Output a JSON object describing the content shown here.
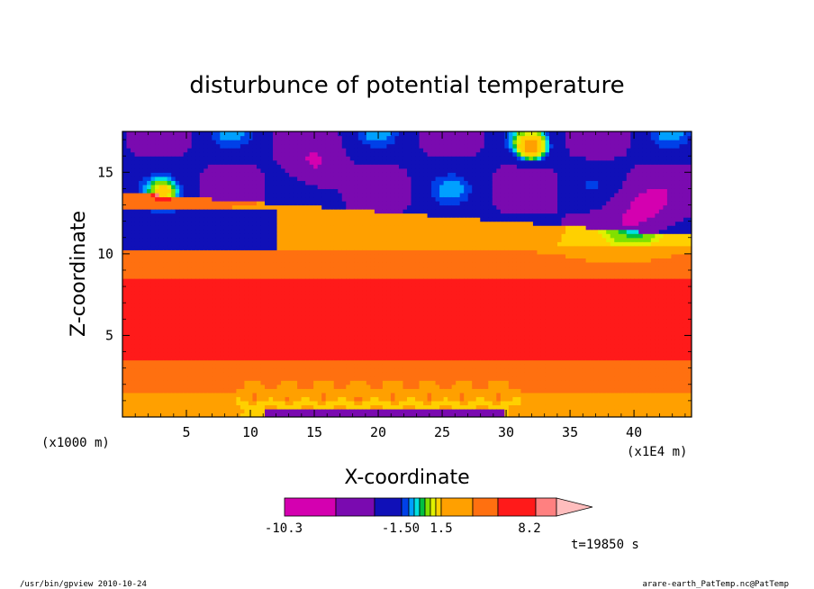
{
  "chart_data": {
    "type": "heatmap",
    "title": "disturbunce of potential temperature",
    "xlabel": "X-coordinate",
    "ylabel": "Z-coordinate",
    "x_unit_left": "(x1000 m)",
    "x_unit_right": "(x1E4 m)",
    "xlim": [
      0,
      44.5
    ],
    "ylim": [
      0,
      17.5
    ],
    "xticks": [
      5,
      10,
      15,
      20,
      25,
      30,
      35,
      40
    ],
    "yticks": [
      5,
      10,
      15
    ],
    "colorbar": {
      "colors": [
        "#d400b0",
        "#7a0ab0",
        "#1010b8",
        "#0040e8",
        "#00a0ff",
        "#00e0e0",
        "#00c040",
        "#80e000",
        "#e0f000",
        "#ffd000",
        "#ffa000",
        "#ff7010",
        "#ff1a1a",
        "#ff8080",
        "#ffbdbd"
      ],
      "labels": [
        "-10.3",
        "-1.50",
        "1.5",
        "8.2"
      ]
    },
    "time_label": "t=19850 s"
  },
  "footer": {
    "left": "/usr/bin/gpview  2010-10-24",
    "right": "arare-earth_PatTemp.nc@PatTemp"
  }
}
